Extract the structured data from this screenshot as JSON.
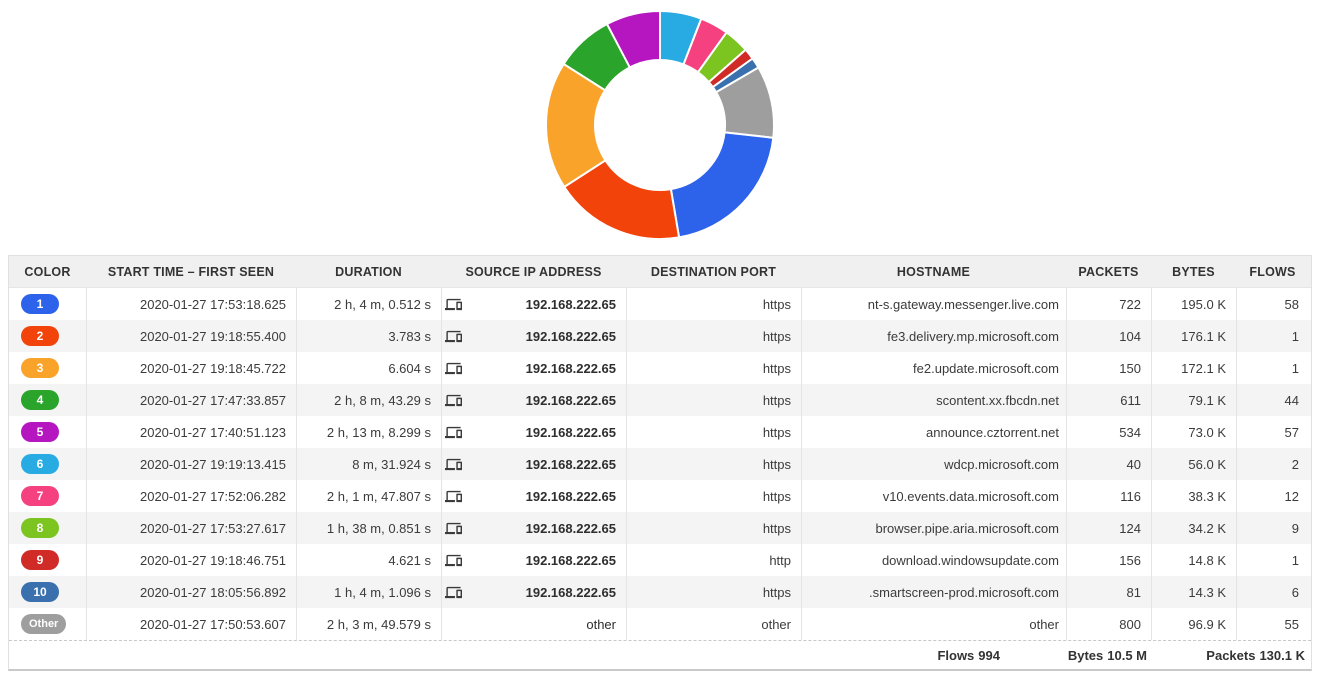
{
  "chart_data": {
    "type": "pie",
    "subtype": "donut",
    "title": "",
    "value_unit": "KB (bytes per flow group)",
    "start_angle_deg": 0,
    "direction": "clockwise",
    "inner_radius_ratio": 0.57,
    "legend_position": "none",
    "slices": [
      {
        "label": "6",
        "hostname": "wdcp.microsoft.com",
        "value": 56.0,
        "color": "#27ABE2"
      },
      {
        "label": "7",
        "hostname": "v10.events.data.microsoft.com",
        "value": 38.3,
        "color": "#F5417F"
      },
      {
        "label": "8",
        "hostname": "browser.pipe.aria.microsoft.com",
        "value": 34.2,
        "color": "#7CC41F"
      },
      {
        "label": "9",
        "hostname": "download.windowsupdate.com",
        "value": 14.8,
        "color": "#D02B26"
      },
      {
        "label": "10",
        "hostname": ".smartscreen-prod.microsoft.com",
        "value": 14.3,
        "color": "#3A70AE"
      },
      {
        "label": "Other",
        "hostname": "other",
        "value": 96.9,
        "color": "#9E9E9E"
      },
      {
        "label": "1",
        "hostname": "nt-s.gateway.messenger.live.com",
        "value": 195.0,
        "color": "#2C63EA"
      },
      {
        "label": "2",
        "hostname": "fe3.delivery.mp.microsoft.com",
        "value": 176.1,
        "color": "#F2430A"
      },
      {
        "label": "3",
        "hostname": "fe2.update.microsoft.com",
        "value": 172.1,
        "color": "#F9A32B"
      },
      {
        "label": "4",
        "hostname": "scontent.xx.fbcdn.net",
        "value": 79.1,
        "color": "#2AA42A"
      },
      {
        "label": "5",
        "hostname": "announce.cztorrent.net",
        "value": 73.0,
        "color": "#B516C0"
      }
    ]
  },
  "table": {
    "columns": [
      "COLOR",
      "START TIME – FIRST SEEN",
      "DURATION",
      "SOURCE IP ADDRESS",
      "DESTINATION PORT",
      "HOSTNAME",
      "PACKETS",
      "BYTES",
      "FLOWS"
    ],
    "source_ip_icon": "devices-icon",
    "rows": [
      {
        "rank": "1",
        "color": "#2C63EA",
        "start_time": "2020-01-27 17:53:18.625",
        "duration": "2 h, 4 m, 0.512 s",
        "source_ip": "192.168.222.65",
        "dest_port": "https",
        "hostname": "nt-s.gateway.messenger.live.com",
        "packets": "722",
        "bytes": "195.0 K",
        "flows": "58",
        "has_device_icon": true
      },
      {
        "rank": "2",
        "color": "#F2430A",
        "start_time": "2020-01-27 19:18:55.400",
        "duration": "3.783 s",
        "source_ip": "192.168.222.65",
        "dest_port": "https",
        "hostname": "fe3.delivery.mp.microsoft.com",
        "packets": "104",
        "bytes": "176.1 K",
        "flows": "1",
        "has_device_icon": true
      },
      {
        "rank": "3",
        "color": "#F9A32B",
        "start_time": "2020-01-27 19:18:45.722",
        "duration": "6.604 s",
        "source_ip": "192.168.222.65",
        "dest_port": "https",
        "hostname": "fe2.update.microsoft.com",
        "packets": "150",
        "bytes": "172.1 K",
        "flows": "1",
        "has_device_icon": true
      },
      {
        "rank": "4",
        "color": "#2AA42A",
        "start_time": "2020-01-27 17:47:33.857",
        "duration": "2 h, 8 m, 43.29 s",
        "source_ip": "192.168.222.65",
        "dest_port": "https",
        "hostname": "scontent.xx.fbcdn.net",
        "packets": "611",
        "bytes": "79.1 K",
        "flows": "44",
        "has_device_icon": true
      },
      {
        "rank": "5",
        "color": "#B516C0",
        "start_time": "2020-01-27 17:40:51.123",
        "duration": "2 h, 13 m, 8.299 s",
        "source_ip": "192.168.222.65",
        "dest_port": "https",
        "hostname": "announce.cztorrent.net",
        "packets": "534",
        "bytes": "73.0 K",
        "flows": "57",
        "has_device_icon": true
      },
      {
        "rank": "6",
        "color": "#27ABE2",
        "start_time": "2020-01-27 19:19:13.415",
        "duration": "8 m, 31.924 s",
        "source_ip": "192.168.222.65",
        "dest_port": "https",
        "hostname": "wdcp.microsoft.com",
        "packets": "40",
        "bytes": "56.0 K",
        "flows": "2",
        "has_device_icon": true
      },
      {
        "rank": "7",
        "color": "#F5417F",
        "start_time": "2020-01-27 17:52:06.282",
        "duration": "2 h, 1 m, 47.807 s",
        "source_ip": "192.168.222.65",
        "dest_port": "https",
        "hostname": "v10.events.data.microsoft.com",
        "packets": "116",
        "bytes": "38.3 K",
        "flows": "12",
        "has_device_icon": true
      },
      {
        "rank": "8",
        "color": "#7CC41F",
        "start_time": "2020-01-27 17:53:27.617",
        "duration": "1 h, 38 m, 0.851 s",
        "source_ip": "192.168.222.65",
        "dest_port": "https",
        "hostname": "browser.pipe.aria.microsoft.com",
        "packets": "124",
        "bytes": "34.2 K",
        "flows": "9",
        "has_device_icon": true
      },
      {
        "rank": "9",
        "color": "#D02B26",
        "start_time": "2020-01-27 19:18:46.751",
        "duration": "4.621 s",
        "source_ip": "192.168.222.65",
        "dest_port": "http",
        "hostname": "download.windowsupdate.com",
        "packets": "156",
        "bytes": "14.8 K",
        "flows": "1",
        "has_device_icon": true
      },
      {
        "rank": "10",
        "color": "#3A70AE",
        "start_time": "2020-01-27 18:05:56.892",
        "duration": "1 h, 4 m, 1.096 s",
        "source_ip": "192.168.222.65",
        "dest_port": "https",
        "hostname": ".smartscreen-prod.microsoft.com",
        "packets": "81",
        "bytes": "14.3 K",
        "flows": "6",
        "has_device_icon": true
      },
      {
        "rank": "Other",
        "color": "#9E9E9E",
        "start_time": "2020-01-27 17:50:53.607",
        "duration": "2 h, 3 m, 49.579 s",
        "source_ip": "other",
        "dest_port": "other",
        "hostname": "other",
        "packets": "800",
        "bytes": "96.9 K",
        "flows": "55",
        "has_device_icon": false
      }
    ]
  },
  "footer": {
    "flows_label": "Flows",
    "flows_value": "994",
    "bytes_label": "Bytes",
    "bytes_value": "10.5 M",
    "packets_label": "Packets",
    "packets_value": "130.1 K"
  }
}
